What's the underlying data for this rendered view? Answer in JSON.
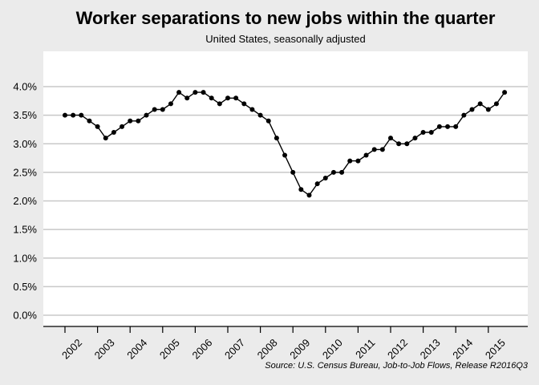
{
  "chart_data": {
    "type": "line",
    "title": "Worker separations to new jobs within the quarter",
    "subtitle": "United States, seasonally adjusted",
    "source": "Source: U.S. Census Bureau, Job-to-Job Flows, Release R2016Q3",
    "xlabel": "",
    "ylabel": "",
    "ylim": [
      0,
      4.0
    ],
    "y_ticks": [
      "0.0%",
      "0.5%",
      "1.0%",
      "1.5%",
      "2.0%",
      "2.5%",
      "3.0%",
      "3.5%",
      "4.0%"
    ],
    "y_tick_values": [
      0,
      0.5,
      1.0,
      1.5,
      2.0,
      2.5,
      3.0,
      3.5,
      4.0
    ],
    "x_ticks": [
      "2002",
      "2003",
      "2004",
      "2005",
      "2006",
      "2007",
      "2008",
      "2009",
      "2010",
      "2011",
      "2012",
      "2013",
      "2014",
      "2015"
    ],
    "grid": true,
    "x": [
      "2001Q4",
      "2002Q1",
      "2002Q2",
      "2002Q3",
      "2002Q4",
      "2003Q1",
      "2003Q2",
      "2003Q3",
      "2003Q4",
      "2004Q1",
      "2004Q2",
      "2004Q3",
      "2004Q4",
      "2005Q1",
      "2005Q2",
      "2005Q3",
      "2005Q4",
      "2006Q1",
      "2006Q2",
      "2006Q3",
      "2006Q4",
      "2007Q1",
      "2007Q2",
      "2007Q3",
      "2007Q4",
      "2008Q1",
      "2008Q2",
      "2008Q3",
      "2008Q4",
      "2009Q1",
      "2009Q2",
      "2009Q3",
      "2009Q4",
      "2010Q1",
      "2010Q2",
      "2010Q3",
      "2010Q4",
      "2011Q1",
      "2011Q2",
      "2011Q3",
      "2011Q4",
      "2012Q1",
      "2012Q2",
      "2012Q3",
      "2012Q4",
      "2013Q1",
      "2013Q2",
      "2013Q3",
      "2013Q4",
      "2014Q1",
      "2014Q2",
      "2014Q3",
      "2014Q4",
      "2015Q1",
      "2015Q2"
    ],
    "series": [
      {
        "values": [
          3.5,
          3.5,
          3.5,
          3.4,
          3.3,
          3.1,
          3.2,
          3.3,
          3.4,
          3.4,
          3.5,
          3.6,
          3.6,
          3.7,
          3.9,
          3.8,
          3.9,
          3.9,
          3.8,
          3.7,
          3.8,
          3.8,
          3.7,
          3.6,
          3.5,
          3.4,
          3.1,
          2.8,
          2.5,
          2.2,
          2.1,
          2.3,
          2.4,
          2.5,
          2.5,
          2.7,
          2.7,
          2.8,
          2.9,
          2.9,
          3.1,
          3.0,
          3.0,
          3.1,
          3.2,
          3.2,
          3.3,
          3.3,
          3.3,
          3.5,
          3.6,
          3.7,
          3.6,
          3.7,
          3.9
        ]
      }
    ],
    "colors": {
      "background": "#ebebeb",
      "plot_background": "#ffffff",
      "gridline": "#c8c8c8",
      "line": "#000000",
      "marker": "#000000"
    }
  }
}
